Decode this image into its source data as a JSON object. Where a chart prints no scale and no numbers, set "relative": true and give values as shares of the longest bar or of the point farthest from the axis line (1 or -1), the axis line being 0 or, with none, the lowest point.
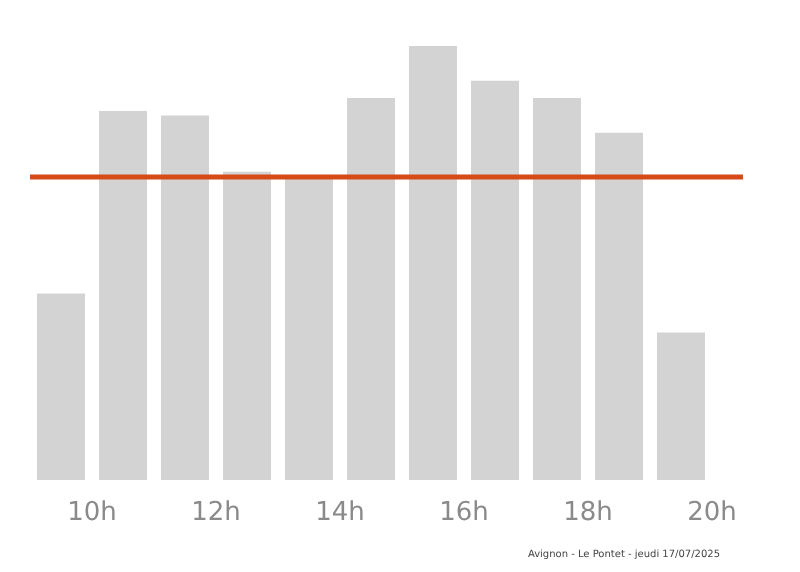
{
  "chart_data": {
    "type": "bar",
    "relative": true,
    "x": [
      9.5,
      10.5,
      11.5,
      12.5,
      13.5,
      14.5,
      15.5,
      16.5,
      17.5,
      18.5,
      19.5
    ],
    "values": [
      0.43,
      0.85,
      0.84,
      0.71,
      0.7,
      0.88,
      1,
      0.92,
      0.88,
      0.8,
      0.34
    ],
    "color": "#d3d3d3",
    "xlim": [
      9,
      20.5
    ],
    "xticks": [
      {
        "value": 10,
        "label": "10h"
      },
      {
        "value": 12,
        "label": "12h"
      },
      {
        "value": 14,
        "label": "14h"
      },
      {
        "value": 16,
        "label": "16h"
      },
      {
        "value": 18,
        "label": "18h"
      },
      {
        "value": 20,
        "label": "20h"
      }
    ],
    "ref_lines": [
      {
        "axis": "y",
        "value": 0.7,
        "label": null,
        "color": "#d44b17"
      }
    ],
    "grid": false,
    "annotations": [
      "Avignon - Le Pontet - jeudi 17/07/2025"
    ]
  }
}
